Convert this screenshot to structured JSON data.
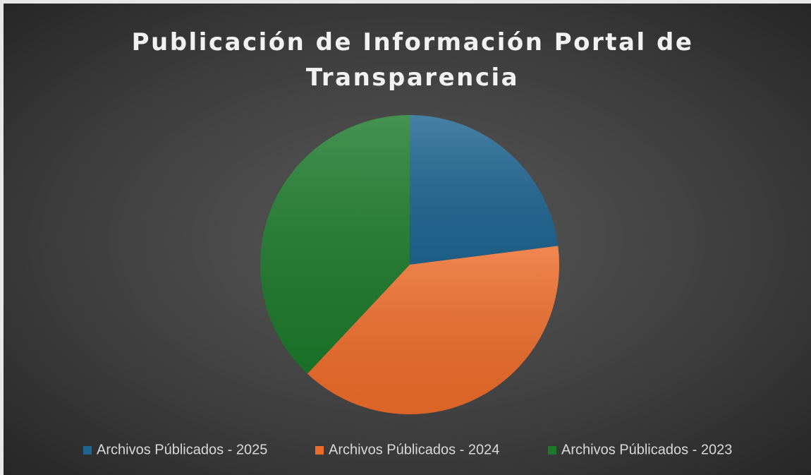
{
  "chart_data": {
    "type": "pie",
    "title": "Publicación de Información Portal de Transparencia",
    "categories": [
      "Archivos Públicados - 2025",
      "Archivos Públicados - 2024",
      "Archivos Públicados - 2023"
    ],
    "values": [
      23,
      39,
      38
    ],
    "colors": [
      "#1f6592",
      "#ee6c2a",
      "#1d7a2c"
    ],
    "legend": "bottom"
  }
}
